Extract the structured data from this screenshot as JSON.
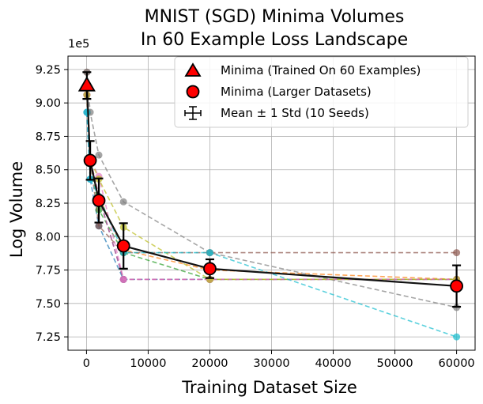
{
  "chart_data": {
    "type": "line",
    "title": [
      "MNIST (SGD) Minima Volumes",
      "In 60 Example Loss Landscape"
    ],
    "xlabel": "Training Dataset Size",
    "ylabel": "Log Volume",
    "y_scale_label": "1e5",
    "y_scale_factor": 100000,
    "xlim": [
      -3000,
      63000
    ],
    "ylim": [
      715000,
      935000
    ],
    "x_ticks": [
      0,
      10000,
      20000,
      30000,
      40000,
      50000,
      60000
    ],
    "x_tick_labels": [
      "0",
      "10000",
      "20000",
      "30000",
      "40000",
      "50000",
      "60000"
    ],
    "y_ticks": [
      725000,
      750000,
      775000,
      800000,
      825000,
      850000,
      875000,
      900000,
      925000
    ],
    "y_tick_labels": [
      "7.25",
      "7.50",
      "7.75",
      "8.00",
      "8.25",
      "8.50",
      "8.75",
      "9.00",
      "9.25"
    ],
    "grid": true,
    "legend_position": "top-right",
    "legend": [
      {
        "label": "Minima (Trained On 60 Examples)",
        "marker": "triangle"
      },
      {
        "label": "Minima (Larger Datasets)",
        "marker": "circle"
      },
      {
        "label": "Mean ± 1 Std (10 Seeds)",
        "marker": "errorbar"
      }
    ],
    "x": [
      60,
      600,
      2000,
      6000,
      20000,
      60000
    ],
    "seeds": [
      {
        "name": "seed 1",
        "color": "#1f77b4",
        "values": [
          893000,
          843000,
          808000,
          768000,
          768000,
          768000
        ]
      },
      {
        "name": "seed 2",
        "color": "#ff7f0e",
        "values": [
          906000,
          858000,
          830000,
          790000,
          775000,
          768000
        ]
      },
      {
        "name": "seed 3",
        "color": "#2ca02c",
        "values": [
          906000,
          858000,
          820000,
          788000,
          768000,
          768000
        ]
      },
      {
        "name": "seed 4",
        "color": "#d62728",
        "values": [
          906000,
          858000,
          830000,
          768000,
          768000,
          768000
        ]
      },
      {
        "name": "seed 5",
        "color": "#9467bd",
        "values": [
          906000,
          858000,
          830000,
          768000,
          768000,
          768000
        ]
      },
      {
        "name": "seed 6",
        "color": "#8c564b",
        "values": [
          923000,
          858000,
          808000,
          788000,
          788000,
          788000
        ]
      },
      {
        "name": "seed 7",
        "color": "#e377c2",
        "values": [
          906000,
          858000,
          845000,
          768000,
          768000,
          768000
        ]
      },
      {
        "name": "seed 8",
        "color": "#7f7f7f",
        "values": [
          923000,
          893000,
          861000,
          826000,
          788000,
          747000
        ]
      },
      {
        "name": "seed 9",
        "color": "#bcbd22",
        "values": [
          906000,
          858000,
          843000,
          807000,
          768000,
          768000
        ]
      },
      {
        "name": "seed 10",
        "color": "#17becf",
        "values": [
          893000,
          843000,
          830000,
          788000,
          788000,
          725000
        ]
      }
    ],
    "trained_minimum": {
      "x": 60,
      "y": 913000
    },
    "mean": {
      "x": [
        60,
        600,
        2000,
        6000,
        20000,
        60000
      ],
      "values": [
        913000,
        857000,
        827000,
        793000,
        776000,
        763000
      ],
      "std": [
        10000,
        14500,
        16500,
        17000,
        7000,
        15500
      ]
    }
  }
}
